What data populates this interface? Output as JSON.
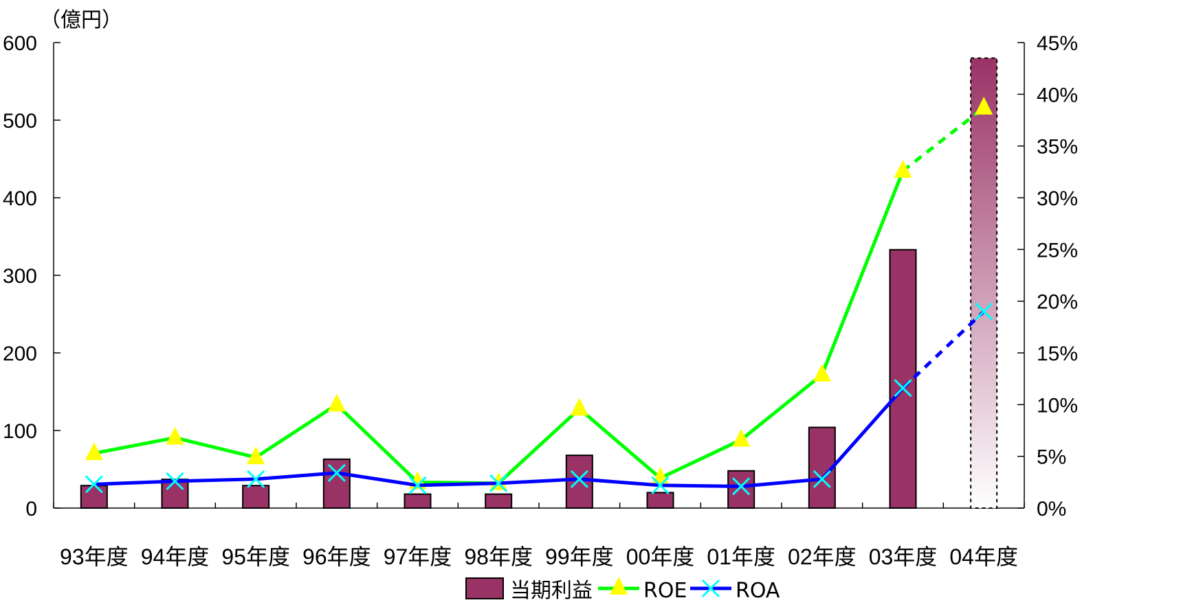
{
  "chart_data": {
    "type": "bar",
    "left_unit": "（億円）",
    "categories": [
      "93年度",
      "94年度",
      "95年度",
      "96年度",
      "97年度",
      "98年度",
      "99年度",
      "00年度",
      "01年度",
      "02年度",
      "03年度",
      "04年度"
    ],
    "y_left_ticks": [
      "0",
      "100",
      "200",
      "300",
      "400",
      "500",
      "600"
    ],
    "y_right_ticks": [
      "0%",
      "5%",
      "10%",
      "15%",
      "20%",
      "25%",
      "30%",
      "35%",
      "40%",
      "45%"
    ],
    "ylim_left": [
      0,
      600
    ],
    "ylim_right": [
      0,
      45
    ],
    "series": [
      {
        "name": "当期利益",
        "type": "bar",
        "axis": "left",
        "color": "#993366",
        "values": [
          29,
          37,
          29,
          63,
          18,
          18,
          68,
          20,
          48,
          104,
          333,
          580
        ],
        "estimated_last": true
      },
      {
        "name": "ROE",
        "type": "line",
        "axis": "right",
        "color": "#00ff00",
        "marker": "triangle",
        "marker_color": "#ffff00",
        "values": [
          5.3,
          6.8,
          4.9,
          10.0,
          2.5,
          2.4,
          9.6,
          2.9,
          6.6,
          12.9,
          32.6,
          38.7
        ],
        "dashed_last_segment": true
      },
      {
        "name": "ROA",
        "type": "line",
        "axis": "right",
        "color": "#0000ff",
        "marker": "x",
        "marker_color": "#00ffff",
        "values": [
          2.3,
          2.6,
          2.8,
          3.4,
          2.2,
          2.4,
          2.8,
          2.2,
          2.1,
          2.8,
          11.6,
          19.0
        ],
        "dashed_last_segment": true
      }
    ],
    "legend_position": "bottom",
    "grid": false
  }
}
